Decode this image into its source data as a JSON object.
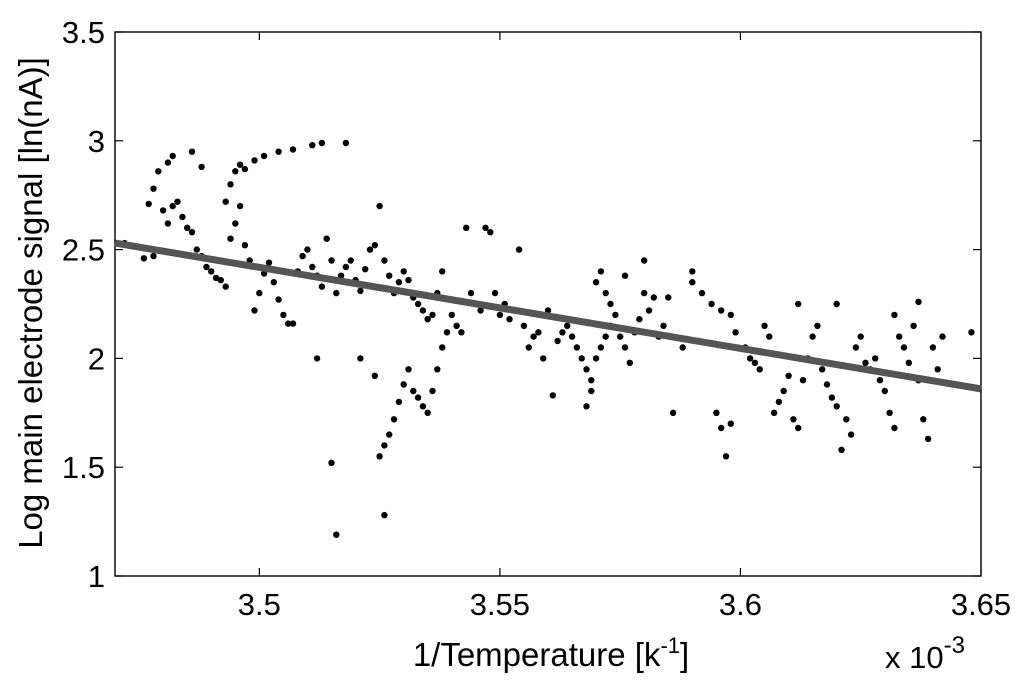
{
  "chart_data": {
    "type": "scatter",
    "title": "",
    "xlabel": "1/Temperature [k",
    "xlabel_sup": "-1",
    "xlabel_close": "]",
    "ylabel": "Log main electrode signal [ln(nA)]",
    "x_exponent_base": "x 10",
    "x_exponent_power": "-3",
    "xlim": [
      3.47,
      3.65
    ],
    "ylim": [
      1,
      3.5
    ],
    "xticks": [
      3.5,
      3.55,
      3.6,
      3.65
    ],
    "xtick_labels": [
      "3.5",
      "3.55",
      "3.6",
      "3.65"
    ],
    "yticks": [
      1,
      1.5,
      2,
      2.5,
      3,
      3.5
    ],
    "ytick_labels": [
      "1",
      "1.5",
      "2",
      "2.5",
      "3",
      "3.5"
    ],
    "grid": false,
    "fit_line": {
      "x": [
        3.47,
        3.65
      ],
      "y": [
        2.53,
        1.86
      ]
    },
    "series": [
      {
        "color": "#000000",
        "points": [
          [
            3.472,
            2.53
          ],
          [
            3.476,
            2.46
          ],
          [
            3.477,
            2.71
          ],
          [
            3.478,
            2.78
          ],
          [
            3.479,
            2.86
          ],
          [
            3.481,
            2.9
          ],
          [
            3.482,
            2.93
          ],
          [
            3.486,
            2.95
          ],
          [
            3.488,
            2.88
          ],
          [
            3.478,
            2.47
          ],
          [
            3.48,
            2.68
          ],
          [
            3.481,
            2.62
          ],
          [
            3.482,
            2.7
          ],
          [
            3.483,
            2.72
          ],
          [
            3.484,
            2.65
          ],
          [
            3.485,
            2.6
          ],
          [
            3.486,
            2.58
          ],
          [
            3.487,
            2.5
          ],
          [
            3.488,
            2.47
          ],
          [
            3.489,
            2.42
          ],
          [
            3.49,
            2.4
          ],
          [
            3.491,
            2.37
          ],
          [
            3.492,
            2.36
          ],
          [
            3.493,
            2.33
          ],
          [
            3.494,
            2.55
          ],
          [
            3.495,
            2.62
          ],
          [
            3.496,
            2.7
          ],
          [
            3.497,
            2.52
          ],
          [
            3.498,
            2.45
          ],
          [
            3.493,
            2.72
          ],
          [
            3.494,
            2.8
          ],
          [
            3.495,
            2.86
          ],
          [
            3.496,
            2.89
          ],
          [
            3.497,
            2.87
          ],
          [
            3.499,
            2.91
          ],
          [
            3.501,
            2.93
          ],
          [
            3.504,
            2.95
          ],
          [
            3.507,
            2.96
          ],
          [
            3.511,
            2.98
          ],
          [
            3.513,
            2.99
          ],
          [
            3.518,
            2.99
          ],
          [
            3.499,
            2.22
          ],
          [
            3.5,
            2.3
          ],
          [
            3.501,
            2.39
          ],
          [
            3.502,
            2.44
          ],
          [
            3.503,
            2.35
          ],
          [
            3.504,
            2.27
          ],
          [
            3.505,
            2.2
          ],
          [
            3.506,
            2.16
          ],
          [
            3.507,
            2.16
          ],
          [
            3.508,
            2.4
          ],
          [
            3.509,
            2.47
          ],
          [
            3.51,
            2.5
          ],
          [
            3.511,
            2.42
          ],
          [
            3.512,
            2.38
          ],
          [
            3.513,
            2.33
          ],
          [
            3.514,
            2.55
          ],
          [
            3.515,
            2.45
          ],
          [
            3.516,
            2.3
          ],
          [
            3.517,
            2.38
          ],
          [
            3.518,
            2.42
          ],
          [
            3.519,
            2.45
          ],
          [
            3.52,
            2.36
          ],
          [
            3.521,
            2.31
          ],
          [
            3.522,
            2.41
          ],
          [
            3.523,
            2.5
          ],
          [
            3.524,
            2.52
          ],
          [
            3.525,
            2.7
          ],
          [
            3.526,
            2.45
          ],
          [
            3.527,
            2.38
          ],
          [
            3.528,
            2.3
          ],
          [
            3.529,
            2.35
          ],
          [
            3.53,
            2.4
          ],
          [
            3.531,
            2.36
          ],
          [
            3.532,
            2.28
          ],
          [
            3.533,
            2.25
          ],
          [
            3.534,
            2.22
          ],
          [
            3.535,
            2.18
          ],
          [
            3.536,
            2.2
          ],
          [
            3.537,
            2.3
          ],
          [
            3.538,
            2.4
          ],
          [
            3.512,
            2.0
          ],
          [
            3.515,
            1.52
          ],
          [
            3.516,
            1.19
          ],
          [
            3.521,
            2.0
          ],
          [
            3.524,
            1.92
          ],
          [
            3.526,
            1.28
          ],
          [
            3.525,
            1.55
          ],
          [
            3.526,
            1.6
          ],
          [
            3.527,
            1.65
          ],
          [
            3.528,
            1.72
          ],
          [
            3.529,
            1.8
          ],
          [
            3.53,
            1.88
          ],
          [
            3.531,
            1.95
          ],
          [
            3.532,
            1.85
          ],
          [
            3.533,
            1.82
          ],
          [
            3.534,
            1.78
          ],
          [
            3.535,
            1.75
          ],
          [
            3.536,
            1.85
          ],
          [
            3.537,
            1.95
          ],
          [
            3.538,
            2.05
          ],
          [
            3.539,
            2.12
          ],
          [
            3.54,
            2.2
          ],
          [
            3.541,
            2.15
          ],
          [
            3.542,
            2.12
          ],
          [
            3.543,
            2.6
          ],
          [
            3.544,
            2.3
          ],
          [
            3.545,
            2.25
          ],
          [
            3.546,
            2.22
          ],
          [
            3.547,
            2.6
          ],
          [
            3.548,
            2.58
          ],
          [
            3.549,
            2.3
          ],
          [
            3.55,
            2.2
          ],
          [
            3.551,
            2.25
          ],
          [
            3.552,
            2.18
          ],
          [
            3.553,
            2.22
          ],
          [
            3.554,
            2.5
          ],
          [
            3.555,
            2.15
          ],
          [
            3.556,
            2.05
          ],
          [
            3.557,
            2.1
          ],
          [
            3.558,
            2.12
          ],
          [
            3.559,
            2.0
          ],
          [
            3.56,
            2.22
          ],
          [
            3.561,
            1.83
          ],
          [
            3.562,
            2.08
          ],
          [
            3.563,
            2.12
          ],
          [
            3.564,
            2.15
          ],
          [
            3.565,
            2.1
          ],
          [
            3.566,
            2.05
          ],
          [
            3.567,
            2.0
          ],
          [
            3.568,
            1.95
          ],
          [
            3.569,
            1.9
          ],
          [
            3.57,
            2.0
          ],
          [
            3.571,
            2.05
          ],
          [
            3.572,
            2.1
          ],
          [
            3.573,
            2.15
          ],
          [
            3.568,
            1.78
          ],
          [
            3.569,
            1.85
          ],
          [
            3.57,
            2.35
          ],
          [
            3.571,
            2.4
          ],
          [
            3.572,
            2.3
          ],
          [
            3.573,
            2.25
          ],
          [
            3.574,
            2.2
          ],
          [
            3.575,
            2.1
          ],
          [
            3.576,
            2.05
          ],
          [
            3.577,
            1.98
          ],
          [
            3.578,
            2.12
          ],
          [
            3.579,
            2.18
          ],
          [
            3.58,
            2.3
          ],
          [
            3.581,
            2.22
          ],
          [
            3.582,
            2.28
          ],
          [
            3.583,
            2.1
          ],
          [
            3.584,
            2.15
          ],
          [
            3.586,
            1.75
          ],
          [
            3.59,
            2.4
          ],
          [
            3.592,
            2.3
          ],
          [
            3.594,
            2.25
          ],
          [
            3.596,
            2.22
          ],
          [
            3.598,
            2.2
          ],
          [
            3.599,
            2.12
          ],
          [
            3.595,
            1.75
          ],
          [
            3.596,
            1.68
          ],
          [
            3.597,
            1.55
          ],
          [
            3.598,
            1.7
          ],
          [
            3.601,
            2.05
          ],
          [
            3.602,
            2.0
          ],
          [
            3.603,
            1.98
          ],
          [
            3.604,
            1.95
          ],
          [
            3.605,
            2.15
          ],
          [
            3.606,
            2.1
          ],
          [
            3.607,
            1.75
          ],
          [
            3.608,
            1.8
          ],
          [
            3.609,
            1.85
          ],
          [
            3.61,
            1.92
          ],
          [
            3.611,
            1.72
          ],
          [
            3.612,
            1.68
          ],
          [
            3.613,
            1.9
          ],
          [
            3.614,
            2.0
          ],
          [
            3.615,
            2.1
          ],
          [
            3.616,
            2.15
          ],
          [
            3.617,
            1.95
          ],
          [
            3.618,
            1.88
          ],
          [
            3.619,
            1.82
          ],
          [
            3.62,
            1.78
          ],
          [
            3.621,
            1.58
          ],
          [
            3.622,
            1.72
          ],
          [
            3.623,
            1.65
          ],
          [
            3.624,
            2.05
          ],
          [
            3.625,
            2.1
          ],
          [
            3.626,
            1.98
          ],
          [
            3.627,
            1.95
          ],
          [
            3.628,
            2.0
          ],
          [
            3.629,
            1.9
          ],
          [
            3.63,
            1.85
          ],
          [
            3.631,
            1.75
          ],
          [
            3.632,
            1.68
          ],
          [
            3.633,
            2.1
          ],
          [
            3.634,
            2.05
          ],
          [
            3.635,
            1.98
          ],
          [
            3.636,
            2.15
          ],
          [
            3.637,
            1.9
          ],
          [
            3.638,
            1.72
          ],
          [
            3.639,
            1.63
          ],
          [
            3.64,
            2.05
          ],
          [
            3.641,
            1.95
          ],
          [
            3.648,
            2.12
          ],
          [
            3.612,
            2.25
          ],
          [
            3.62,
            2.25
          ],
          [
            3.632,
            2.2
          ],
          [
            3.637,
            2.26
          ],
          [
            3.642,
            2.1
          ],
          [
            3.588,
            2.05
          ],
          [
            3.59,
            2.35
          ],
          [
            3.58,
            2.45
          ],
          [
            3.585,
            2.28
          ],
          [
            3.576,
            2.38
          ]
        ]
      }
    ]
  }
}
